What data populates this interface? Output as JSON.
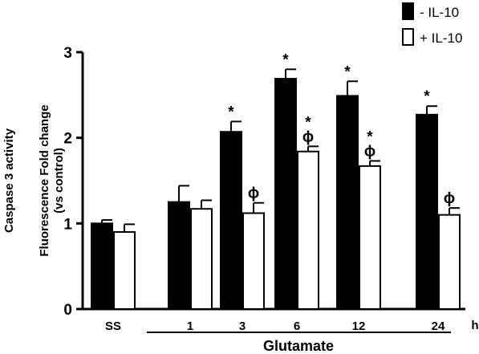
{
  "chart_data": {
    "type": "bar",
    "ylabel_line1": "Caspase 3 activity",
    "ylabel_line2": "Fluorescence Fold change",
    "ylabel_line3": "(vs control)",
    "categories": [
      "SS",
      "1",
      "3",
      "6",
      "12",
      "24"
    ],
    "unit_label": "h",
    "group_label": "Glutamate",
    "ylim": [
      0,
      3
    ],
    "yticks": [
      0,
      1,
      2,
      3
    ],
    "series": [
      {
        "name": "- IL-10",
        "color": "#000000",
        "values": [
          1.0,
          1.25,
          2.07,
          2.69,
          2.49,
          2.27
        ],
        "errors": [
          0.04,
          0.19,
          0.12,
          0.11,
          0.17,
          0.1
        ],
        "markers": [
          "",
          "",
          "*",
          "*",
          "*",
          "*"
        ]
      },
      {
        "name": "+ IL-10",
        "color": "#ffffff",
        "values": [
          0.9,
          1.17,
          1.12,
          1.84,
          1.67,
          1.1
        ],
        "errors": [
          0.09,
          0.1,
          0.12,
          0.06,
          0.06,
          0.08
        ],
        "markers": [
          "",
          "",
          "ϕ",
          "*\nϕ",
          "*\nϕ",
          "ϕ"
        ]
      }
    ]
  }
}
